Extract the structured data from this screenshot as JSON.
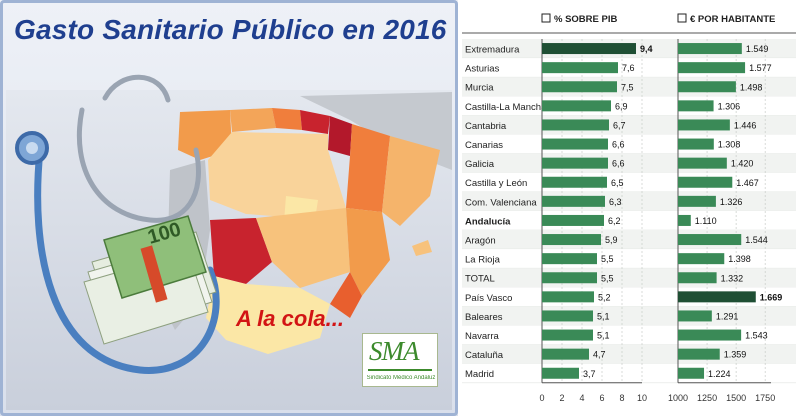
{
  "title": "Gasto Sanitario Público en 2016",
  "caption": "A la cola...",
  "logo": {
    "text": "SMA",
    "subtitle": "Sindicato Médico Andaluz"
  },
  "banknote_value": "100",
  "colors": {
    "title": "#1f3f8f",
    "caption": "#d21414",
    "bar": "#3a8a57",
    "bar_dark": "#1f4f34",
    "logo": "#3c8a2c"
  },
  "chart_data": [
    {
      "type": "bar",
      "orientation": "horizontal",
      "title": "% SOBRE PIB",
      "categories": [
        "Extremadura",
        "Asturias",
        "Murcia",
        "Castilla-La Mancha",
        "Cantabria",
        "Canarias",
        "Galicia",
        "Castilla y León",
        "Com. Valenciana",
        "Andalucía",
        "Aragón",
        "La Rioja",
        "TOTAL",
        "País Vasco",
        "Baleares",
        "Navarra",
        "Cataluña",
        "Madrid"
      ],
      "values": [
        9.4,
        7.6,
        7.5,
        6.9,
        6.7,
        6.6,
        6.6,
        6.5,
        6.3,
        6.2,
        5.9,
        5.5,
        5.5,
        5.2,
        5.1,
        5.1,
        4.7,
        3.7
      ],
      "value_labels": [
        "9,4",
        "7,6",
        "7,5",
        "6,9",
        "6,7",
        "6,6",
        "6,6",
        "6,5",
        "6,3",
        "6,2",
        "5,9",
        "5,5",
        "5,5",
        "5,2",
        "5,1",
        "5,1",
        "4,7",
        "3,7"
      ],
      "highlight_index": 0,
      "bold_category_index": 9,
      "xlim": [
        0,
        10
      ],
      "xticks": [
        0,
        2,
        4,
        6,
        8,
        10
      ],
      "xtick_labels": [
        "0",
        "2",
        "4",
        "6",
        "8",
        "10"
      ],
      "grid": true
    },
    {
      "type": "bar",
      "orientation": "horizontal",
      "title": "€ POR HABITANTE",
      "categories": [
        "Extremadura",
        "Asturias",
        "Murcia",
        "Castilla-La Mancha",
        "Cantabria",
        "Canarias",
        "Galicia",
        "Castilla y León",
        "Com. Valenciana",
        "Andalucía",
        "Aragón",
        "La Rioja",
        "TOTAL",
        "País Vasco",
        "Baleares",
        "Navarra",
        "Cataluña",
        "Madrid"
      ],
      "values": [
        1549,
        1577,
        1498,
        1306,
        1446,
        1308,
        1420,
        1467,
        1326,
        1110,
        1544,
        1398,
        1332,
        1669,
        1291,
        1543,
        1359,
        1224
      ],
      "value_labels": [
        "1.549",
        "1.577",
        "1.498",
        "1.306",
        "1.446",
        "1.308",
        "1.420",
        "1.467",
        "1.326",
        "1.110",
        "1.544",
        "1.398",
        "1.332",
        "1.669",
        "1.291",
        "1.543",
        "1.359",
        "1.224"
      ],
      "highlight_index": 13,
      "xlim": [
        1000,
        1800
      ],
      "xticks": [
        1000,
        1250,
        1500,
        1750
      ],
      "xtick_labels": [
        "1000",
        "1250",
        "1500",
        "1750"
      ],
      "grid": true
    }
  ]
}
